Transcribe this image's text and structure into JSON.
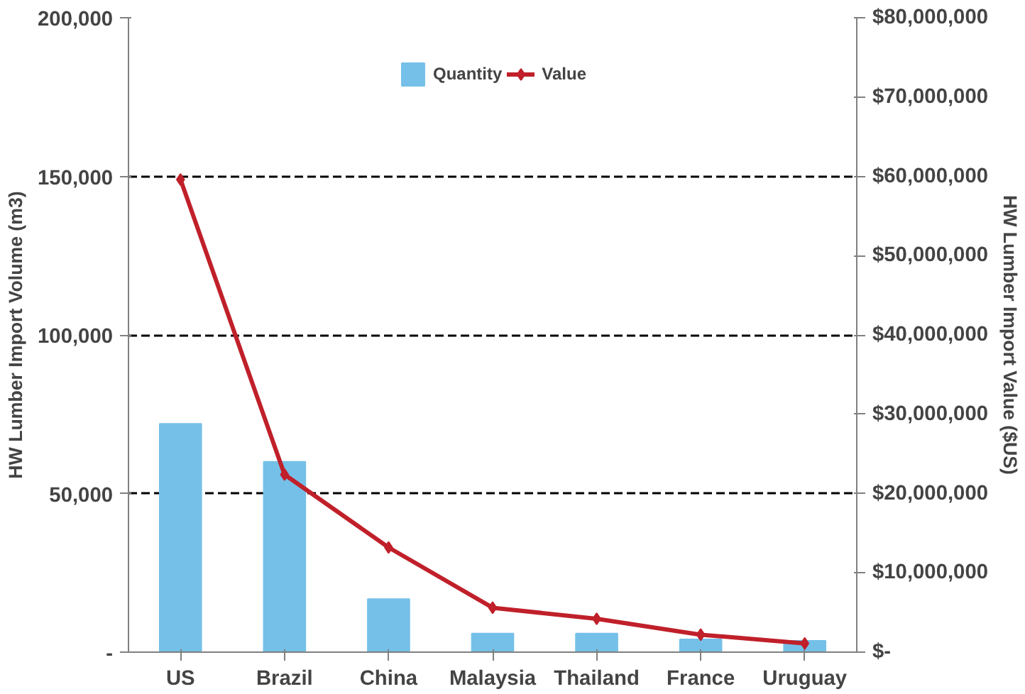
{
  "chart_data": {
    "type": "bar",
    "xlabel": null,
    "ylabel": "HW Lumber Import Volume (m3)",
    "y2label": "HW Lumber Import Value ($US)",
    "categories": [
      "US",
      "Brazil",
      "China",
      "Malaysia",
      "Thailand",
      "France",
      "Uruguay"
    ],
    "series": [
      {
        "name": "Quantity",
        "color": "#75c0e8",
        "values": [
          72000,
          60000,
          16700,
          5900,
          5900,
          4000,
          3600
        ]
      },
      {
        "name": "Value",
        "type": "line",
        "axis": "y2",
        "color": "#c0202a",
        "marker": "diamond",
        "line_style": "solid",
        "values": [
          59600000,
          22400000,
          13200000,
          5600000,
          4200000,
          2200000,
          1100000
        ]
      }
    ],
    "ylim": [
      0,
      200000
    ],
    "yticks": [
      {
        "value": 0,
        "label": "-"
      },
      {
        "value": 50000,
        "label": "50,000"
      },
      {
        "value": 100000,
        "label": "100,000"
      },
      {
        "value": 150000,
        "label": "150,000"
      },
      {
        "value": 200000,
        "label": "200,000"
      }
    ],
    "y2lim": [
      0,
      80000000
    ],
    "y2ticks": [
      {
        "value": 0,
        "label": "$-"
      },
      {
        "value": 10000000,
        "label": "$10,000,000"
      },
      {
        "value": 20000000,
        "label": "$20,000,000"
      },
      {
        "value": 30000000,
        "label": "$30,000,000"
      },
      {
        "value": 40000000,
        "label": "$40,000,000"
      },
      {
        "value": 50000000,
        "label": "$50,000,000"
      },
      {
        "value": 60000000,
        "label": "$60,000,000"
      },
      {
        "value": 70000000,
        "label": "$70,000,000"
      },
      {
        "value": 80000000,
        "label": "$80,000,000"
      }
    ],
    "grid": "y",
    "legend": "top"
  }
}
